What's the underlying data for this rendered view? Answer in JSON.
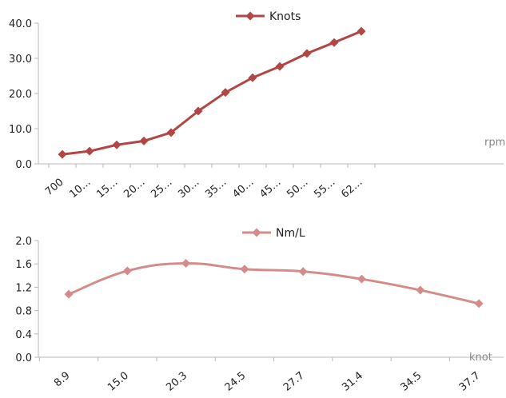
{
  "chart_data": [
    {
      "type": "line",
      "categories": [
        "700",
        "10…",
        "15…",
        "20…",
        "25…",
        "30…",
        "35…",
        "40…",
        "45…",
        "50…",
        "55…",
        "62…"
      ],
      "series": [
        {
          "name": "Knots",
          "values": [
            2.7,
            3.6,
            5.4,
            6.5,
            8.9,
            15.0,
            20.3,
            24.5,
            27.7,
            31.4,
            34.5,
            37.7
          ],
          "color": "#b24644"
        }
      ],
      "y_ticks": [
        "0.0",
        "10.0",
        "20.0",
        "30.0",
        "40.0"
      ],
      "ylim": [
        0,
        40
      ],
      "x_unit": "rpm",
      "grid": false,
      "legend_position": "top",
      "marker": "diamond"
    },
    {
      "type": "line",
      "categories": [
        "8.9",
        "15.0",
        "20.3",
        "24.5",
        "27.7",
        "31.4",
        "34.5",
        "37.7"
      ],
      "series": [
        {
          "name": "Nm/L",
          "values": [
            1.08,
            1.48,
            1.61,
            1.51,
            1.47,
            1.34,
            1.15,
            0.92
          ],
          "color": "#d48c8a"
        }
      ],
      "y_ticks": [
        "0.0",
        "0.4",
        "0.8",
        "1.2",
        "1.6",
        "2.0"
      ],
      "ylim": [
        0,
        2
      ],
      "x_unit": "knot",
      "grid": false,
      "legend_position": "top",
      "marker": "diamond",
      "smooth": true
    }
  ]
}
